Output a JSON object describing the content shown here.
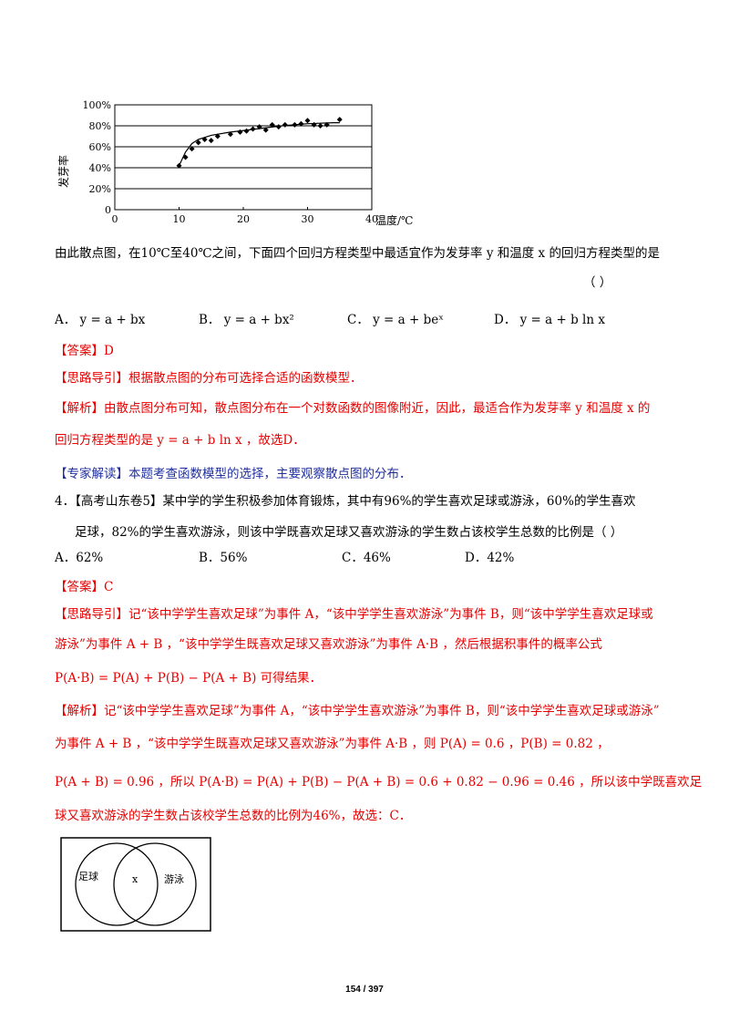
{
  "chart_data": {
    "type": "scatter",
    "xlabel": "温度/℃",
    "ylabel": "发芽率",
    "xlim": [
      0,
      40
    ],
    "ylim": [
      0,
      100
    ],
    "x_ticks": [
      "0",
      "10",
      "20",
      "30",
      "40"
    ],
    "y_ticks": [
      "0",
      "20%",
      "40%",
      "60%",
      "80%",
      "100%"
    ],
    "grid": "horizontal",
    "points": [
      [
        10,
        42
      ],
      [
        11,
        50
      ],
      [
        12,
        58
      ],
      [
        13,
        64
      ],
      [
        14,
        67
      ],
      [
        15,
        66
      ],
      [
        16,
        70
      ],
      [
        18,
        72
      ],
      [
        19.5,
        74
      ],
      [
        20.5,
        75
      ],
      [
        21.5,
        77
      ],
      [
        22.5,
        79
      ],
      [
        23.5,
        76
      ],
      [
        24.5,
        81
      ],
      [
        25.5,
        79
      ],
      [
        26.5,
        81
      ],
      [
        28,
        81
      ],
      [
        29,
        82
      ],
      [
        30,
        85
      ],
      [
        31,
        81
      ],
      [
        32,
        80
      ],
      [
        33,
        81
      ],
      [
        35,
        86
      ]
    ],
    "curve": [
      [
        10,
        42
      ],
      [
        11,
        55
      ],
      [
        12,
        63
      ],
      [
        13,
        67
      ],
      [
        15,
        71
      ],
      [
        18,
        74
      ],
      [
        22,
        77
      ],
      [
        26,
        80
      ],
      [
        30,
        82
      ],
      [
        34,
        83
      ],
      [
        35,
        83
      ]
    ]
  },
  "q3": {
    "stem": "由此散点图，在10℃至40℃之间，下面四个回归方程类型中最适宜作为发芽率 y 和温度 x 的回归方程类型的是",
    "paren": "（      ）",
    "options": [
      "A． y = a + bx",
      "B． y = a + bx²",
      "C． y = a + beˣ",
      "D． y = a + b ln x"
    ],
    "answer": "【答案】D",
    "guide": "【思路导引】根据散点图的分布可选择合适的函数模型．",
    "analysis_1": "【解析】由散点图分布可知，散点图分布在一个对数函数的图像附近，因此，最适合作为发芽率 y 和温度 x 的",
    "analysis_2": "回归方程类型的是 y = a + b ln x ，故选D．",
    "expert": "【专家解读】本题考查函数模型的选择，主要观察散点图的分布．"
  },
  "q4": {
    "stem_1": "4．【高考山东卷5】某中学的学生积极参加体育锻炼，其中有96%的学生喜欢足球或游泳，60%的学生喜欢",
    "stem_2": "足球，82%的学生喜欢游泳，则该中学既喜欢足球又喜欢游泳的学生数占该校学生总数的比例是（      ）",
    "options": [
      "A．62%",
      "B．56%",
      "C．46%",
      "D．42%"
    ],
    "answer": "【答案】C",
    "guide_1": "【思路导引】记“该中学学生喜欢足球”为事件 A，“该中学学生喜欢游泳”为事件 B，则“该中学学生喜欢足球或",
    "guide_2": "游泳”为事件 A + B ，“该中学学生既喜欢足球又喜欢游泳”为事件 A·B ，然后根据积事件的概率公式",
    "guide_3": "P(A·B) = P(A) + P(B) − P(A + B) 可得结果．",
    "analysis_1": "【解析】记“该中学学生喜欢足球”为事件 A，“该中学学生喜欢游泳”为事件 B，则“该中学学生喜欢足球或游泳”",
    "analysis_2": "为事件 A + B ，“该中学学生既喜欢足球又喜欢游泳”为事件 A·B ，则 P(A) = 0.6 ，P(B) = 0.82 ，",
    "analysis_3": "P(A + B) = 0.96 ，所以 P(A·B) = P(A) + P(B) − P(A + B) = 0.6 + 0.82 − 0.96 = 0.46 ，所以该中学既喜欢足",
    "analysis_4": "球又喜欢游泳的学生数占该校学生总数的比例为46%，故选：C．"
  },
  "venn": {
    "left": "足球",
    "center": "x",
    "right": "游泳"
  },
  "page_number": "154 / 397"
}
